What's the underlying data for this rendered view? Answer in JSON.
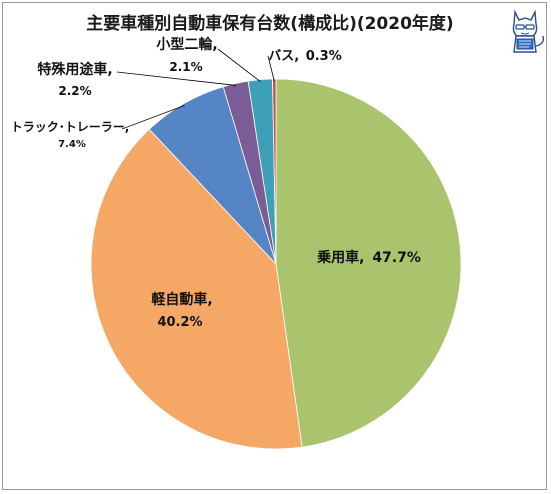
{
  "chart_data": {
    "type": "pie",
    "title": "主要車種別自動車保有台数(構成比)(2020年度)",
    "slices": [
      {
        "name": "乗用車",
        "value": 47.7,
        "label": "47.7%",
        "color": "#a9c46d"
      },
      {
        "name": "軽自動車",
        "value": 40.2,
        "label": "40.2%",
        "color": "#f5a766"
      },
      {
        "name": "トラック･トレーラー",
        "value": 7.4,
        "label": "7.4%",
        "color": "#5585c4"
      },
      {
        "name": "特殊用途車",
        "value": 2.2,
        "label": "2.2%",
        "color": "#7b5c96"
      },
      {
        "name": "小型二輪",
        "value": 2.1,
        "label": "2.1%",
        "color": "#3ea0b7"
      },
      {
        "name": "バス",
        "value": 0.3,
        "label": "0.3%",
        "color": "#c4504a"
      }
    ],
    "start_angle_deg": 0,
    "direction": "clockwise",
    "legend": "none"
  },
  "labels": {
    "jouyousha_name": "乗用車,",
    "jouyousha_pct": "47.7%",
    "kei_name": "軽自動車,",
    "kei_pct": "40.2%",
    "truck_name": "トラック･トレーラー,",
    "truck_pct": "7.4%",
    "tokushu_name": "特殊用途車,",
    "tokushu_pct": "2.2%",
    "kogata_name": "小型二輪,",
    "kogata_pct": "2.1%",
    "bus_name": "バス,",
    "bus_pct": "0.3%"
  },
  "colors": {
    "background": "#ffffff",
    "border": "#9a9a9a",
    "leader_line": "#000000"
  },
  "icon": "mascot-cat-icon"
}
